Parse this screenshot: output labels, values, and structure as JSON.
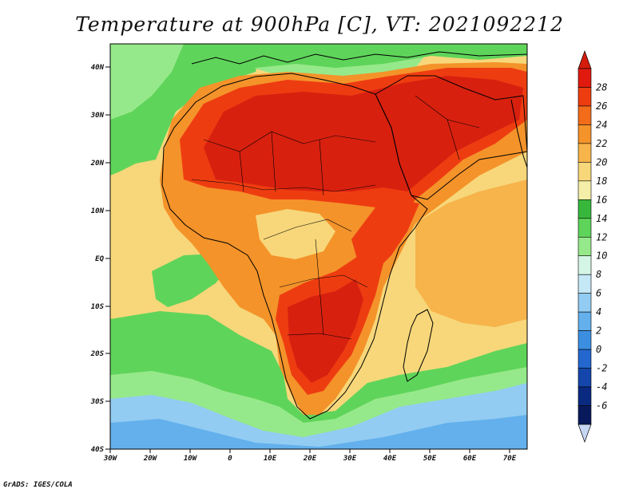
{
  "title": "Temperature at 900hPa [C], VT: 2021092212",
  "credit": "GrADS: IGES/COLA",
  "map": {
    "domain": "Africa and Arabian Peninsula",
    "variable": "Temperature at 900hPa",
    "units": "C",
    "valid_time": "2021092212",
    "lon_ticks": [
      "30W",
      "20W",
      "10W",
      "0",
      "10E",
      "20E",
      "30E",
      "40E",
      "50E",
      "60E",
      "70E"
    ],
    "lat_ticks": [
      "40N",
      "30N",
      "20N",
      "10N",
      "EQ",
      "10S",
      "20S",
      "30S",
      "40S"
    ]
  },
  "colorbar": {
    "levels": [
      "28",
      "26",
      "24",
      "22",
      "20",
      "18",
      "16",
      "14",
      "12",
      "10",
      "8",
      "6",
      "4",
      "2",
      "0",
      "-2",
      "-4",
      "-6"
    ],
    "colors": [
      "#e01a0e",
      "#ee3c11",
      "#f26c1a",
      "#f4932a",
      "#f6b44b",
      "#f7d77a",
      "#f5eea8",
      "#37b83c",
      "#5fd45a",
      "#96e98a",
      "#d5f6e6",
      "#c5e8f7",
      "#92ccf2",
      "#63b0ec",
      "#3c8fe0",
      "#2468cf",
      "#1446ab",
      "#0a2a82",
      "#081a5c"
    ],
    "top_color": "#d41c0c",
    "bottom_color": "#c6d7f5"
  },
  "fill_colors": {
    "ocean_north": "#5fd45a",
    "ocean_cool": "#96e98a",
    "ocean_cold": "#92ccf2",
    "ocean_colder": "#63b0ec",
    "warm_pale": "#f7d77a",
    "warm": "#f4932a",
    "hot": "#ee3c11",
    "hottest": "#d8200f"
  }
}
